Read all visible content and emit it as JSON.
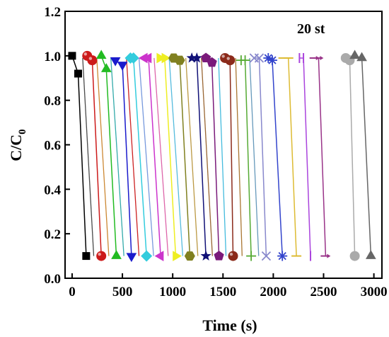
{
  "chart_data": {
    "type": "line",
    "title": "",
    "annotation": "20 st",
    "xlabel": "Time (s)",
    "ylabel_main": "C/C",
    "ylabel_sub": "0",
    "xlim": [
      -70,
      3080
    ],
    "ylim": [
      0.0,
      1.2
    ],
    "xticks": [
      0,
      500,
      1000,
      1500,
      2000,
      2500,
      3000
    ],
    "yticks": [
      0.0,
      0.2,
      0.4,
      0.6,
      0.8,
      1.0,
      1.2
    ],
    "xtick_labels": [
      "0",
      "500",
      "1000",
      "1500",
      "2000",
      "2500",
      "3000"
    ],
    "ytick_labels": [
      "0.0",
      "0.2",
      "0.4",
      "0.6",
      "0.8",
      "1.0",
      "1.2"
    ],
    "grid": false,
    "legend": "none",
    "series": [
      {
        "color": "#000000",
        "marker": "square",
        "points": [
          [
            0,
            1.0
          ],
          [
            60,
            0.92
          ],
          [
            140,
            0.1
          ]
        ]
      },
      {
        "color": "#cc1a1a",
        "marker": "sphere",
        "points": [
          [
            150,
            1.0
          ],
          [
            200,
            0.98
          ],
          [
            290,
            0.1
          ]
        ]
      },
      {
        "color": "#22bb22",
        "marker": "triangle-up",
        "points": [
          [
            290,
            1.0
          ],
          [
            340,
            0.94
          ],
          [
            440,
            0.1
          ]
        ]
      },
      {
        "color": "#1a1acc",
        "marker": "triangle-down",
        "points": [
          [
            430,
            0.98
          ],
          [
            500,
            0.96
          ],
          [
            590,
            0.1
          ]
        ]
      },
      {
        "color": "#33ccdd",
        "marker": "diamond",
        "points": [
          [
            580,
            0.99
          ],
          [
            610,
            0.99
          ],
          [
            740,
            0.1
          ]
        ]
      },
      {
        "color": "#cc33cc",
        "marker": "triangle-left",
        "points": [
          [
            720,
            0.99
          ],
          [
            760,
            0.99
          ],
          [
            880,
            0.1
          ]
        ]
      },
      {
        "color": "#eeee22",
        "marker": "triangle-right",
        "points": [
          [
            870,
            0.99
          ],
          [
            920,
            0.99
          ],
          [
            1030,
            0.1
          ]
        ]
      },
      {
        "color": "#808020",
        "marker": "hexagon",
        "points": [
          [
            1010,
            0.99
          ],
          [
            1070,
            0.98
          ],
          [
            1170,
            0.1
          ]
        ]
      },
      {
        "color": "#111177",
        "marker": "star",
        "points": [
          [
            1190,
            0.99
          ],
          [
            1240,
            0.99
          ],
          [
            1330,
            0.1
          ]
        ]
      },
      {
        "color": "#7a1a7a",
        "marker": "pentagon",
        "points": [
          [
            1330,
            0.99
          ],
          [
            1390,
            0.97
          ],
          [
            1460,
            0.1
          ]
        ]
      },
      {
        "color": "#8b2a1a",
        "marker": "sphere",
        "points": [
          [
            1520,
            0.99
          ],
          [
            1570,
            0.98
          ],
          [
            1600,
            0.1
          ]
        ]
      },
      {
        "color": "#55aa33",
        "marker": "plus",
        "points": [
          [
            1680,
            0.98
          ],
          [
            1720,
            0.98
          ],
          [
            1780,
            0.1
          ]
        ]
      },
      {
        "color": "#8888cc",
        "marker": "x",
        "points": [
          [
            1810,
            0.99
          ],
          [
            1860,
            0.99
          ],
          [
            1930,
            0.1
          ]
        ]
      },
      {
        "color": "#3344cc",
        "marker": "asterisk",
        "points": [
          [
            1950,
            0.99
          ],
          [
            1990,
            0.98
          ],
          [
            2090,
            0.1
          ]
        ]
      },
      {
        "color": "#ddbb33",
        "marker": "dash",
        "points": [
          [
            2100,
            0.99
          ],
          [
            2150,
            0.99
          ],
          [
            2230,
            0.1
          ]
        ]
      },
      {
        "color": "#aa44dd",
        "marker": "vline",
        "points": [
          [
            2260,
            0.99
          ],
          [
            2300,
            0.99
          ],
          [
            2370,
            0.1
          ]
        ]
      },
      {
        "color": "#993388",
        "marker": "arrow",
        "points": [
          [
            2410,
            0.99
          ],
          [
            2450,
            0.99
          ],
          [
            2520,
            0.1
          ]
        ]
      },
      {
        "color": "#aaaaaa",
        "marker": "circle",
        "points": [
          [
            2720,
            0.99
          ],
          [
            2760,
            0.98
          ],
          [
            2810,
            0.1
          ]
        ]
      },
      {
        "color": "#666666",
        "marker": "triangle-up",
        "points": [
          [
            2810,
            1.0
          ],
          [
            2880,
            0.99
          ],
          [
            2970,
            0.1
          ]
        ]
      }
    ],
    "extra_line_colors": [
      "#4a4a4a",
      "#cc8833",
      "#33aaaa",
      "#cc2222",
      "#7799dd",
      "#dd66aa",
      "#55bbdd",
      "#bb9944",
      "#996633",
      "#44bbdd",
      "#aa7733",
      "#6699bb"
    ]
  }
}
